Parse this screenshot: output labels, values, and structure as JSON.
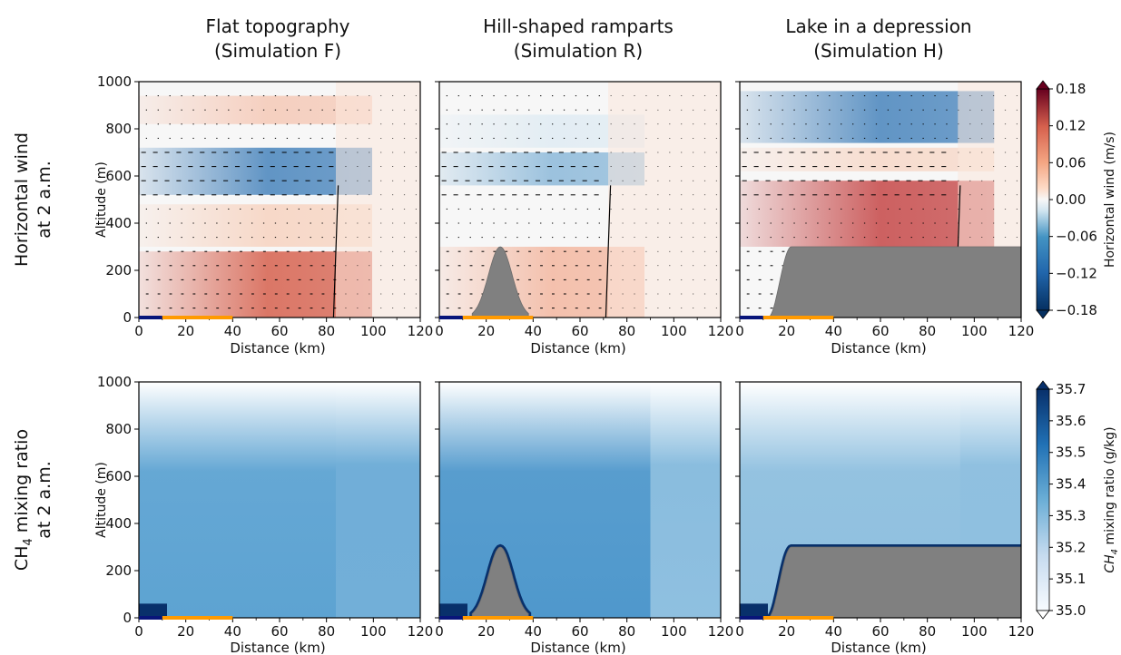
{
  "figure": {
    "columns": [
      {
        "title_line1": "Flat topography",
        "title_line2": "(Simulation F)",
        "terrain": "flat"
      },
      {
        "title_line1": "Hill-shaped ramparts",
        "title_line2": "(Simulation R)",
        "terrain": "hill"
      },
      {
        "title_line1": "Lake in a depression",
        "title_line2": "(Simulation H)",
        "terrain": "plateau"
      }
    ],
    "rows": [
      {
        "label_line1": "Horizontal wind",
        "label_line2": "at 2 a.m."
      },
      {
        "label_line1": "CH",
        "label_sub": "4",
        "label_line1b": " mixing ratio",
        "label_line2": "at 2 a.m."
      }
    ],
    "ylabel": "Altitude (m)",
    "xlabel": "Distance (km)"
  },
  "chart_data": [
    {
      "type": "heatmap",
      "variable": "horizontal_wind",
      "x_ticks": [
        "0",
        "20",
        "40",
        "60",
        "80",
        "100",
        "120"
      ],
      "y_ticks": [
        "0",
        "200",
        "400",
        "600",
        "800",
        "1000"
      ],
      "xlim": [
        0,
        120
      ],
      "ylim": [
        0,
        1000
      ],
      "xlabel": "Distance (km)",
      "ylabel": "Altitude (m)",
      "colorbar": {
        "label": "Horizontal wind (m/s)",
        "ticks": [
          "0.18",
          "0.12",
          "0.06",
          "0.00",
          "−0.06",
          "−0.12",
          "−0.18"
        ],
        "range": [
          -0.18,
          0.18
        ],
        "colormap": "RdBu_r",
        "extend": "both",
        "color_low": "#053061",
        "color_high": "#67001f"
      },
      "panels": [
        {
          "name": "Simulation F",
          "terrain": "flat",
          "front_km": 84,
          "bands": [
            {
              "y0": 0,
              "y1": 280,
              "color": "#d6604d",
              "opacity": 0.85
            },
            {
              "y0": 300,
              "y1": 480,
              "color": "#f7cbb4",
              "opacity": 0.7
            },
            {
              "y0": 520,
              "y1": 720,
              "color": "#2f74b4",
              "opacity": 0.75
            },
            {
              "y0": 820,
              "y1": 940,
              "color": "#f4b59b",
              "opacity": 0.6
            }
          ]
        },
        {
          "name": "Simulation R",
          "terrain": "hill",
          "front_km": 72,
          "bands": [
            {
              "y0": 0,
              "y1": 300,
              "color": "#f2a385",
              "opacity": 0.65
            },
            {
              "y0": 560,
              "y1": 700,
              "color": "#6aa5d0",
              "opacity": 0.65
            },
            {
              "y0": 720,
              "y1": 860,
              "color": "#cfe3f0",
              "opacity": 0.5
            }
          ]
        },
        {
          "name": "Simulation H",
          "terrain": "plateau",
          "front_km": 93,
          "bands": [
            {
              "y0": 300,
              "y1": 580,
              "color": "#c23b3b",
              "opacity": 0.8
            },
            {
              "y0": 620,
              "y1": 720,
              "color": "#f7cbb4",
              "opacity": 0.6
            },
            {
              "y0": 740,
              "y1": 960,
              "color": "#2f74b4",
              "opacity": 0.75
            }
          ]
        }
      ],
      "colors": {
        "positive": "#b2182b",
        "negative": "#2166ac",
        "terrain": "#808080",
        "lake": "#08157a",
        "land": "#ff9a00"
      }
    },
    {
      "type": "heatmap",
      "variable": "CH4_mixing_ratio",
      "x_ticks": [
        "0",
        "20",
        "40",
        "60",
        "80",
        "100",
        "120"
      ],
      "y_ticks": [
        "0",
        "200",
        "400",
        "600",
        "800",
        "1000"
      ],
      "xlim": [
        0,
        120
      ],
      "ylim": [
        0,
        1000
      ],
      "xlabel": "Distance (km)",
      "ylabel": "Altitude (m)",
      "colorbar": {
        "label": "CH4 mixing ratio (g/kg)",
        "label_prefix": "CH",
        "label_sub": "4",
        "label_suffix": " mixing ratio (g/kg)",
        "ticks": [
          "35.7",
          "35.6",
          "35.5",
          "35.4",
          "35.3",
          "35.2",
          "35.1",
          "35.0"
        ],
        "range": [
          35.0,
          35.7
        ],
        "colormap": "Blues",
        "extend": "both",
        "color_low": "#ffffff",
        "color_high": "#08306b"
      },
      "panels": [
        {
          "name": "Simulation F",
          "terrain": "flat",
          "fill": "#5da3d2",
          "mid_km": 84,
          "right_fill": "#72afd8"
        },
        {
          "name": "Simulation R",
          "terrain": "hill",
          "fill": "#4f98cc",
          "mid_km": 90,
          "right_fill": "#8fc0e0"
        },
        {
          "name": "Simulation H",
          "terrain": "plateau",
          "fill": "#8ebfdf",
          "mid_km": 94,
          "right_fill": "#8fc0e0"
        }
      ]
    }
  ]
}
